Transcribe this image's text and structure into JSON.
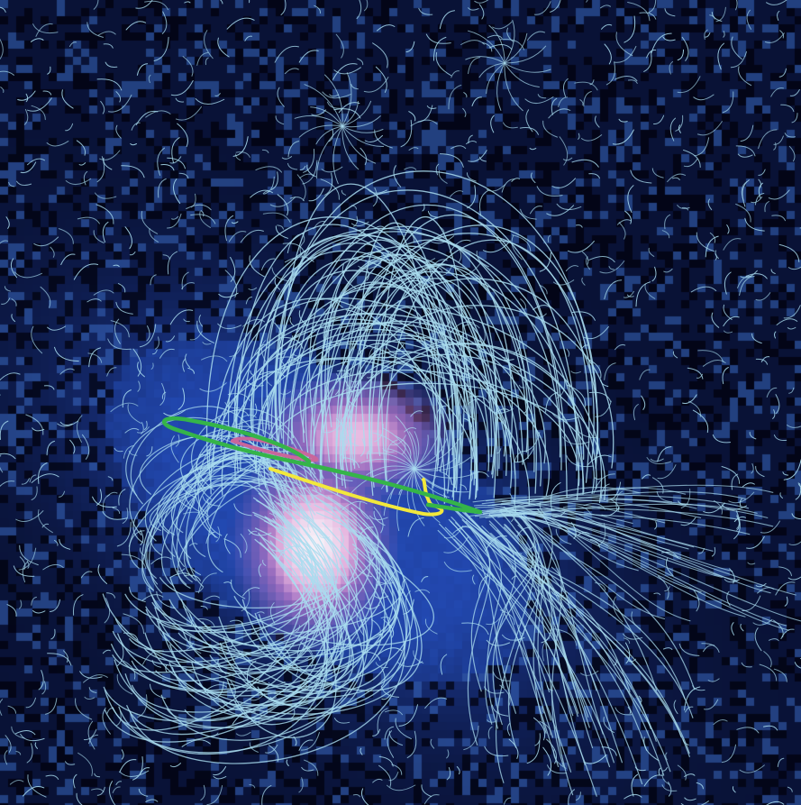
{
  "image": {
    "description_free": true,
    "colors": {
      "background_dark": "#050a24",
      "background_blue": "#1f3f9e",
      "field_line": "#a9dcef",
      "core_pink": "#d77fc8",
      "core_white": "#f6f1f8",
      "loop_green": "#35b449",
      "loop_yellow": "#f2e83c",
      "loop_pink": "#c9669b"
    },
    "layers": [
      "pixel-intensity-map",
      "field-lines",
      "highlighted-loops"
    ]
  }
}
